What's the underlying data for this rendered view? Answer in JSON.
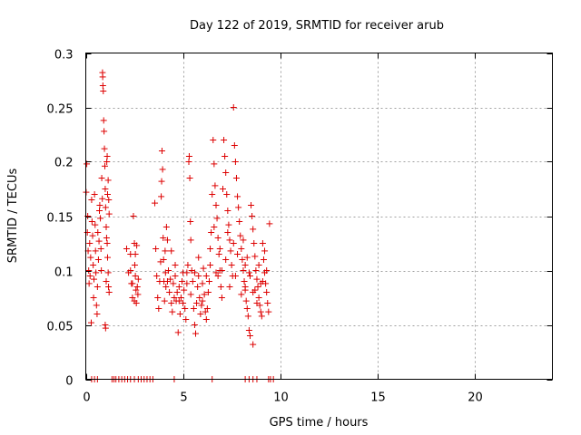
{
  "chart_data": {
    "type": "scatter",
    "title": "Day 122 of 2019, SRMTID for receiver arub",
    "xlabel": "GPS time / hours",
    "ylabel": "SRMTID / TECUs",
    "xlim": [
      0,
      24
    ],
    "ylim": [
      0,
      0.3
    ],
    "xticks": [
      0,
      5,
      10,
      15,
      20
    ],
    "xtick_labels": [
      "0",
      "5",
      "10",
      "15",
      "20"
    ],
    "yticks": [
      0,
      0.05,
      0.1,
      0.15,
      0.2,
      0.25,
      0.3
    ],
    "ytick_labels": [
      "0",
      "0.05",
      "0.1",
      "0.15",
      "0.2",
      "0.25",
      "0.3"
    ],
    "grid": true,
    "marker": "+",
    "color": "#dd0000",
    "series": [
      {
        "name": "SRMTID",
        "points": [
          [
            0.02,
            0.172
          ],
          [
            0.05,
            0.198
          ],
          [
            0.08,
            0.135
          ],
          [
            0.1,
            0.15
          ],
          [
            0.12,
            0.118
          ],
          [
            0.15,
            0.1
          ],
          [
            0.17,
            0.088
          ],
          [
            0.2,
            0.125
          ],
          [
            0.22,
            0.095
          ],
          [
            0.25,
            0.112
          ],
          [
            0.28,
            0.052
          ],
          [
            0.3,
            0.165
          ],
          [
            0.32,
            0.145
          ],
          [
            0.35,
            0.132
          ],
          [
            0.38,
            0.105
          ],
          [
            0.4,
            0.075
          ],
          [
            0.42,
            0.092
          ],
          [
            0.45,
            0.17
          ],
          [
            0.48,
            0.142
          ],
          [
            0.5,
            0.118
          ],
          [
            0.52,
            0.098
          ],
          [
            0.55,
            0.068
          ],
          [
            0.58,
            0.06
          ],
          [
            0.6,
            0.085
          ],
          [
            0.62,
            0.135
          ],
          [
            0.65,
            0.11
          ],
          [
            0.68,
            0.127
          ],
          [
            0.7,
            0.155
          ],
          [
            0.72,
            0.16
          ],
          [
            0.75,
            0.148
          ],
          [
            0.78,
            0.12
          ],
          [
            0.8,
            0.1
          ],
          [
            0.82,
            0.185
          ],
          [
            0.85,
            0.166
          ],
          [
            0.86,
            0.282
          ],
          [
            0.87,
            0.278
          ],
          [
            0.88,
            0.27
          ],
          [
            0.9,
            0.265
          ],
          [
            0.92,
            0.238
          ],
          [
            0.94,
            0.228
          ],
          [
            0.96,
            0.212
          ],
          [
            0.98,
            0.196
          ],
          [
            1.0,
            0.175
          ],
          [
            1.02,
            0.158
          ],
          [
            1.05,
            0.14
          ],
          [
            1.07,
            0.13
          ],
          [
            1.1,
            0.125
          ],
          [
            1.12,
            0.112
          ],
          [
            1.15,
            0.098
          ],
          [
            1.17,
            0.085
          ],
          [
            1.2,
            0.08
          ],
          [
            1.0,
            0.05
          ],
          [
            1.02,
            0.047
          ],
          [
            1.05,
            0.09
          ],
          [
            1.08,
            0.2
          ],
          [
            1.1,
            0.205
          ],
          [
            1.12,
            0.17
          ],
          [
            1.15,
            0.183
          ],
          [
            1.18,
            0.165
          ],
          [
            1.2,
            0.152
          ],
          [
            2.1,
            0.12
          ],
          [
            2.2,
            0.098
          ],
          [
            2.3,
            0.115
          ],
          [
            2.35,
            0.088
          ],
          [
            2.4,
            0.075
          ],
          [
            2.45,
            0.15
          ],
          [
            2.5,
            0.125
          ],
          [
            2.52,
            0.105
          ],
          [
            2.55,
            0.095
          ],
          [
            2.58,
            0.082
          ],
          [
            2.6,
            0.07
          ],
          [
            2.62,
            0.123
          ],
          [
            2.65,
            0.085
          ],
          [
            2.68,
            0.078
          ],
          [
            2.7,
            0.092
          ],
          [
            2.3,
            0.1
          ],
          [
            2.4,
            0.088
          ],
          [
            2.5,
            0.072
          ],
          [
            2.55,
            0.115
          ],
          [
            3.55,
            0.162
          ],
          [
            3.6,
            0.12
          ],
          [
            3.65,
            0.095
          ],
          [
            3.7,
            0.075
          ],
          [
            3.75,
            0.065
          ],
          [
            3.8,
            0.09
          ],
          [
            3.85,
            0.108
          ],
          [
            3.88,
            0.168
          ],
          [
            3.9,
            0.182
          ],
          [
            3.92,
            0.21
          ],
          [
            3.95,
            0.193
          ],
          [
            3.98,
            0.13
          ],
          [
            4.0,
            0.11
          ],
          [
            4.02,
            0.09
          ],
          [
            4.05,
            0.072
          ],
          [
            4.08,
            0.118
          ],
          [
            4.1,
            0.098
          ],
          [
            4.12,
            0.085
          ],
          [
            4.15,
            0.14
          ],
          [
            4.2,
            0.128
          ],
          [
            4.25,
            0.1
          ],
          [
            4.3,
            0.08
          ],
          [
            4.35,
            0.092
          ],
          [
            4.4,
            0.07
          ],
          [
            4.45,
            0.062
          ],
          [
            4.5,
            0.088
          ],
          [
            4.55,
            0.075
          ],
          [
            4.6,
            0.095
          ],
          [
            4.65,
            0.072
          ],
          [
            4.7,
            0.08
          ],
          [
            4.75,
            0.043
          ],
          [
            4.8,
            0.085
          ],
          [
            4.85,
            0.06
          ],
          [
            4.9,
            0.075
          ],
          [
            4.95,
            0.09
          ],
          [
            5.0,
            0.07
          ],
          [
            5.05,
            0.082
          ],
          [
            5.1,
            0.065
          ],
          [
            5.15,
            0.055
          ],
          [
            5.2,
            0.098
          ],
          [
            5.25,
            0.105
          ],
          [
            5.3,
            0.2
          ],
          [
            5.32,
            0.205
          ],
          [
            5.35,
            0.185
          ],
          [
            5.38,
            0.145
          ],
          [
            5.4,
            0.128
          ],
          [
            5.45,
            0.1
          ],
          [
            5.5,
            0.09
          ],
          [
            5.55,
            0.065
          ],
          [
            5.6,
            0.05
          ],
          [
            5.65,
            0.042
          ],
          [
            5.7,
            0.07
          ],
          [
            5.75,
            0.085
          ],
          [
            5.8,
            0.095
          ],
          [
            5.85,
            0.075
          ],
          [
            5.9,
            0.06
          ],
          [
            5.95,
            0.068
          ],
          [
            6.0,
            0.088
          ],
          [
            6.05,
            0.102
          ],
          [
            6.1,
            0.078
          ],
          [
            6.15,
            0.062
          ],
          [
            6.2,
            0.055
          ],
          [
            6.25,
            0.065
          ],
          [
            6.3,
            0.08
          ],
          [
            6.35,
            0.09
          ],
          [
            6.4,
            0.12
          ],
          [
            6.45,
            0.135
          ],
          [
            6.5,
            0.17
          ],
          [
            6.55,
            0.22
          ],
          [
            6.6,
            0.198
          ],
          [
            6.65,
            0.178
          ],
          [
            6.7,
            0.16
          ],
          [
            6.75,
            0.148
          ],
          [
            6.8,
            0.13
          ],
          [
            6.85,
            0.115
          ],
          [
            6.9,
            0.1
          ],
          [
            6.95,
            0.085
          ],
          [
            7.0,
            0.075
          ],
          [
            7.05,
            0.175
          ],
          [
            7.1,
            0.22
          ],
          [
            7.15,
            0.205
          ],
          [
            7.2,
            0.19
          ],
          [
            7.25,
            0.17
          ],
          [
            7.3,
            0.155
          ],
          [
            7.35,
            0.142
          ],
          [
            7.4,
            0.128
          ],
          [
            7.45,
            0.118
          ],
          [
            7.5,
            0.105
          ],
          [
            7.55,
            0.095
          ],
          [
            7.6,
            0.25
          ],
          [
            7.65,
            0.215
          ],
          [
            7.7,
            0.2
          ],
          [
            7.75,
            0.185
          ],
          [
            7.8,
            0.168
          ],
          [
            7.85,
            0.158
          ],
          [
            7.9,
            0.145
          ],
          [
            7.95,
            0.132
          ],
          [
            8.0,
            0.12
          ],
          [
            8.05,
            0.11
          ],
          [
            8.1,
            0.1
          ],
          [
            8.15,
            0.09
          ],
          [
            8.2,
            0.082
          ],
          [
            8.25,
            0.072
          ],
          [
            8.3,
            0.065
          ],
          [
            8.35,
            0.058
          ],
          [
            8.4,
            0.045
          ],
          [
            8.45,
            0.04
          ],
          [
            8.5,
            0.16
          ],
          [
            8.55,
            0.15
          ],
          [
            8.6,
            0.138
          ],
          [
            8.65,
            0.125
          ],
          [
            8.7,
            0.113
          ],
          [
            8.75,
            0.1
          ],
          [
            8.8,
            0.092
          ],
          [
            8.85,
            0.085
          ],
          [
            8.9,
            0.075
          ],
          [
            8.95,
            0.068
          ],
          [
            9.0,
            0.062
          ],
          [
            9.05,
            0.058
          ],
          [
            9.1,
            0.125
          ],
          [
            9.15,
            0.11
          ],
          [
            9.2,
            0.098
          ],
          [
            9.25,
            0.088
          ],
          [
            9.3,
            0.08
          ],
          [
            9.35,
            0.07
          ],
          [
            9.4,
            0.062
          ],
          [
            9.45,
            0.143
          ],
          [
            8.6,
            0.032
          ],
          [
            8.2,
            0.105
          ],
          [
            8.0,
            0.078
          ],
          [
            7.7,
            0.095
          ],
          [
            7.4,
            0.085
          ],
          [
            7.2,
            0.11
          ],
          [
            6.9,
            0.12
          ],
          [
            6.7,
            0.098
          ],
          [
            6.6,
            0.14
          ],
          [
            6.4,
            0.105
          ],
          [
            6.2,
            0.095
          ],
          [
            6.0,
            0.072
          ],
          [
            5.8,
            0.112
          ],
          [
            5.6,
            0.098
          ],
          [
            5.4,
            0.078
          ],
          [
            5.2,
            0.088
          ],
          [
            5.0,
            0.098
          ],
          [
            4.8,
            0.072
          ],
          [
            4.6,
            0.105
          ],
          [
            4.4,
            0.118
          ],
          [
            4.2,
            0.09
          ],
          [
            7.8,
            0.115
          ],
          [
            8.1,
            0.128
          ],
          [
            8.3,
            0.112
          ],
          [
            8.45,
            0.095
          ],
          [
            8.7,
            0.082
          ],
          [
            8.9,
            0.105
          ],
          [
            9.1,
            0.09
          ],
          [
            9.2,
            0.118
          ],
          [
            9.3,
            0.1
          ],
          [
            9.0,
            0.088
          ],
          [
            8.8,
            0.07
          ],
          [
            8.6,
            0.08
          ],
          [
            8.4,
            0.098
          ],
          [
            8.2,
            0.085
          ],
          [
            7.6,
            0.125
          ],
          [
            7.3,
            0.135
          ],
          [
            7.0,
            0.1
          ],
          [
            6.8,
            0.095
          ]
        ]
      }
    ],
    "zero_points_x": [
      0.3,
      0.45,
      0.6,
      1.35,
      1.45,
      1.55,
      1.7,
      1.85,
      2.0,
      2.15,
      2.3,
      2.5,
      2.7,
      2.85,
      3.0,
      3.15,
      3.3,
      3.45,
      4.55,
      6.5,
      8.2,
      8.4,
      8.6,
      8.8,
      9.4,
      9.5,
      9.65
    ]
  }
}
